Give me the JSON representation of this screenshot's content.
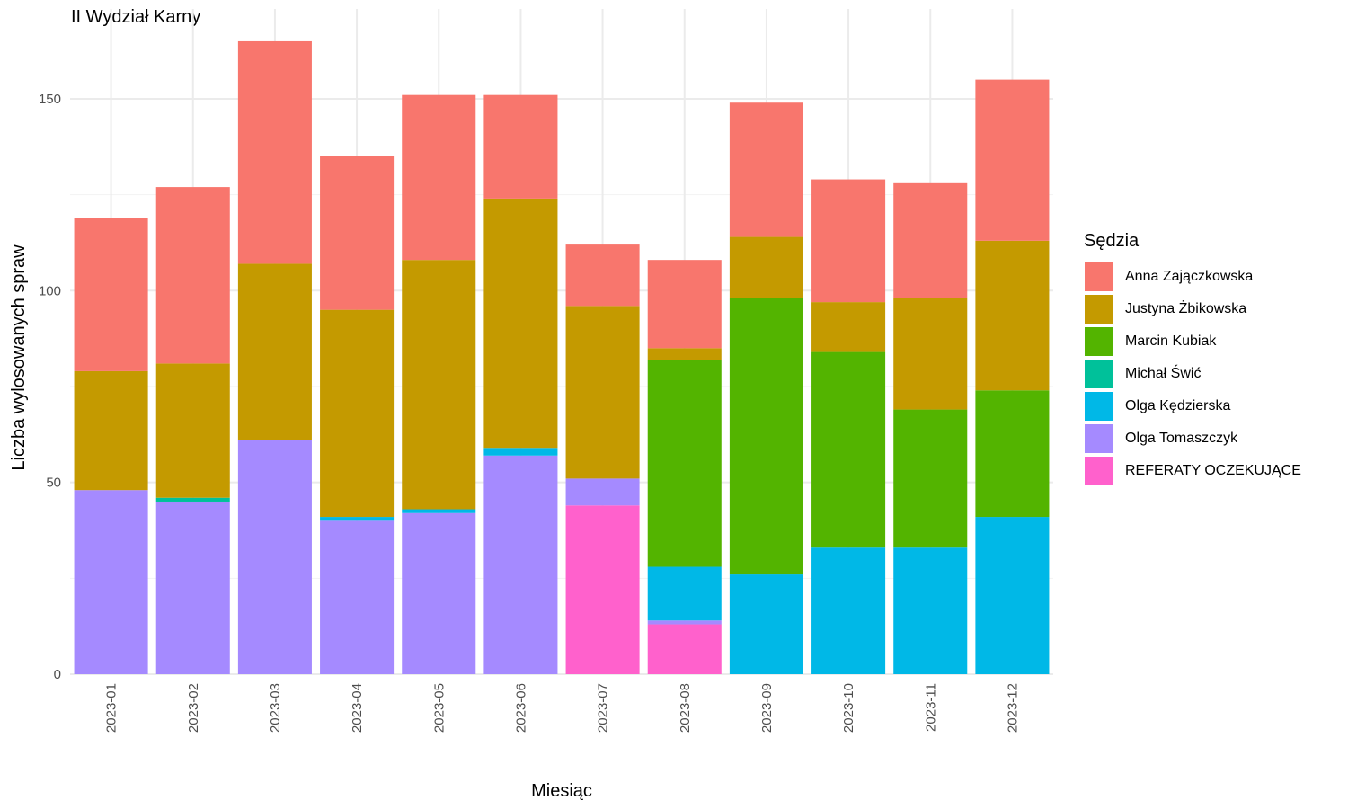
{
  "chart_data": {
    "type": "bar",
    "stacked": true,
    "title": "II Wydział Karny",
    "xlabel": "Miesiąc",
    "ylabel": "Liczba wylosowanych spraw",
    "ylim": [
      0,
      168
    ],
    "yticks": [
      0,
      50,
      100,
      150
    ],
    "grid": true,
    "legend_position": "right",
    "legend_title": "Sędzia",
    "categories": [
      "2023-01",
      "2023-02",
      "2023-03",
      "2023-04",
      "2023-05",
      "2023-06",
      "2023-07",
      "2023-08",
      "2023-09",
      "2023-10",
      "2023-11",
      "2023-12"
    ],
    "series": [
      {
        "name": "REFERATY OCZEKUJĄCE",
        "color": "#FF61CC",
        "values": [
          0,
          0,
          0,
          0,
          0,
          0,
          44,
          13,
          0,
          0,
          0,
          0
        ]
      },
      {
        "name": "Olga Tomaszczyk",
        "color": "#A58AFF",
        "values": [
          48,
          45,
          61,
          40,
          42,
          57,
          7,
          1,
          0,
          0,
          0,
          0
        ]
      },
      {
        "name": "Olga Kędzierska",
        "color": "#00B8E7",
        "values": [
          0,
          0,
          0,
          1,
          1,
          2,
          0,
          14,
          26,
          33,
          33,
          41
        ]
      },
      {
        "name": "Michał Świć",
        "color": "#00C19A",
        "values": [
          0,
          1,
          0,
          0,
          0,
          0,
          0,
          0,
          0,
          0,
          0,
          0
        ]
      },
      {
        "name": "Marcin Kubiak",
        "color": "#53B400",
        "values": [
          0,
          0,
          0,
          0,
          0,
          0,
          0,
          54,
          72,
          51,
          36,
          33
        ]
      },
      {
        "name": "Justyna Żbikowska",
        "color": "#C49A00",
        "values": [
          31,
          35,
          46,
          54,
          65,
          65,
          45,
          3,
          16,
          13,
          29,
          39
        ]
      },
      {
        "name": "Anna Zajączkowska",
        "color": "#F8766D",
        "values": [
          40,
          46,
          58,
          40,
          43,
          27,
          16,
          23,
          35,
          32,
          30,
          42
        ]
      }
    ],
    "legend_order": [
      "Anna Zajączkowska",
      "Justyna Żbikowska",
      "Marcin Kubiak",
      "Michał Świć",
      "Olga Kędzierska",
      "Olga Tomaszczyk",
      "REFERATY OCZEKUJĄCE"
    ]
  }
}
